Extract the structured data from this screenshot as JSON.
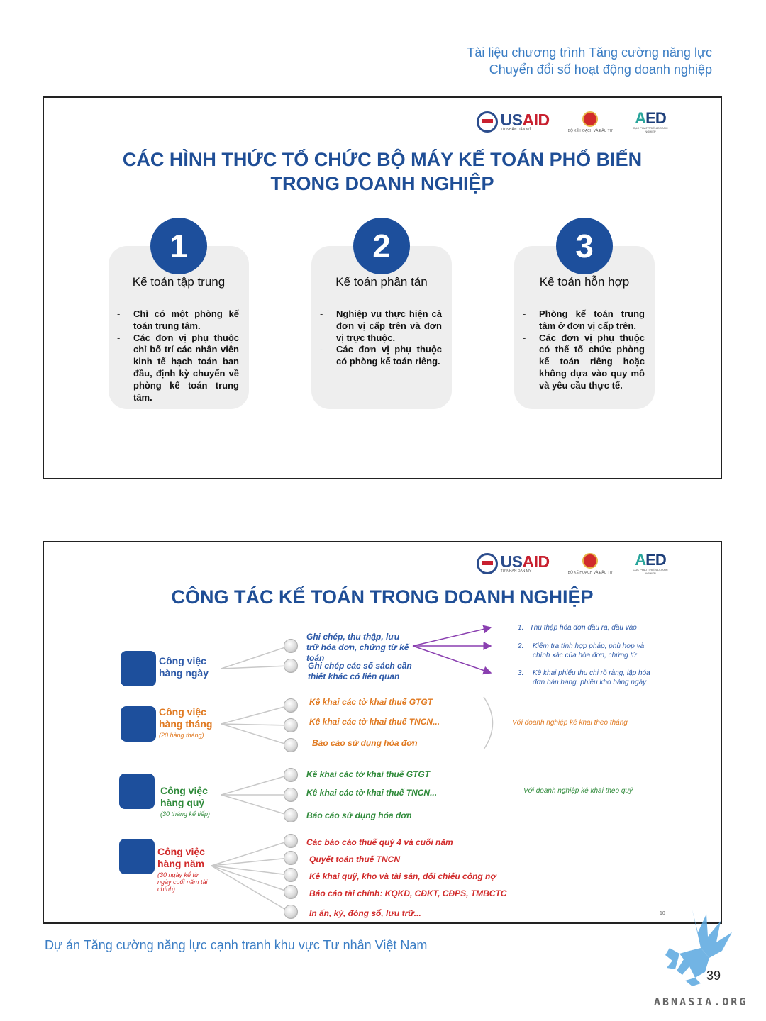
{
  "header": {
    "line1": "Tài liệu chương trình Tăng cường năng lực",
    "line2": "Chuyển đổi số hoạt động doanh nghiệp"
  },
  "logos": {
    "usaid_us": "US",
    "usaid_aid": "AID",
    "usaid_sub": "TỪ NHÂN DÂN MỸ",
    "mpi_sub": "BỘ KẾ HOẠCH VÀ ĐẦU TƯ",
    "aed_a": "A",
    "aed_ed": "ED",
    "aed_sub": "CỤC PHÁT TRIỂN DOANH NGHIỆP"
  },
  "slide1": {
    "title_line1": "CÁC HÌNH THỨC TỔ CHỨC BỘ MÁY KẾ TOÁN PHỔ BIẾN",
    "title_line2": "TRONG DOANH NGHIỆP",
    "cards": [
      {
        "num": "1",
        "title": "Kế toán tập trung",
        "bullets": [
          "Chỉ có một phòng kế toán trung tâm.",
          "Các đơn vị phụ thuộc chỉ bố trí các nhân viên kinh tế hạch toán ban đầu, định kỳ chuyển về phòng kế toán trung tâm."
        ]
      },
      {
        "num": "2",
        "title": "Kế toán phân tán",
        "bullets": [
          "Nghiệp vụ thực hiện cả đơn vị cấp trên và đơn vị trực thuộc.",
          "Các đơn vị phụ thuộc có phòng kế toán riêng."
        ]
      },
      {
        "num": "3",
        "title": "Kế toán hỗn hợp",
        "bullets": [
          "Phòng kế toán trung tâm ở đơn vị cấp trên.",
          "Các đơn vị phụ thuộc có thể tổ chức phòng kế toán riêng hoặc không dựa vào quy mô và yêu cầu thực tế."
        ]
      }
    ]
  },
  "slide2": {
    "title": "CÔNG TÁC KẾ TOÁN TRONG DOANH NGHIỆP",
    "groups": [
      {
        "label": "Công việc hàng ngày",
        "sub": "",
        "tasks": [
          "Ghi chép, thu thập, lưu trữ hóa đơn, chứng từ kế toán",
          "Ghi chép các sổ sách cần thiết khác có liên quan"
        ]
      },
      {
        "label": "Công việc hàng tháng",
        "sub": "(20 hàng tháng)",
        "tasks": [
          "Kê khai các tờ khai thuế GTGT",
          "Kê khai các tờ khai thuế  TNCN...",
          "Báo cáo sử dụng hóa đơn"
        ],
        "note": "Với doanh nghiệp kê khai theo tháng"
      },
      {
        "label": "Công việc hàng quý",
        "sub": "(30 tháng kế tiếp)",
        "tasks": [
          "Kê khai các tờ khai thuế GTGT",
          "Kê khai các tờ khai thuế  TNCN...",
          "Báo cáo sử dụng hóa đơn"
        ],
        "note": "Với doanh nghiệp kê khai theo quý"
      },
      {
        "label": "Công việc hàng năm",
        "sub": "(30 ngày kể từ ngày cuối năm tài chính)",
        "tasks": [
          "Các báo cáo thuế quý 4 và cuối năm",
          "Quyết toán thuế TNCN",
          "Kê khai quỹ, kho và tài sản, đối chiếu công nợ",
          "Báo cáo tài chính: KQKD, CĐKT, CĐPS, TMBCTC",
          "In ấn, ký, đóng sổ, lưu trữ..."
        ]
      }
    ],
    "daily_steps": [
      {
        "n": "1.",
        "text": "Thu thập hóa đơn đầu ra, đầu vào"
      },
      {
        "n": "2.",
        "text": "Kiểm tra tính hợp pháp, phù hợp và chính xác của hóa đơn, chứng từ"
      },
      {
        "n": "3.",
        "text": "Kê khai phiếu thu chi rõ ràng, lập hóa đơn bán hàng, phiếu kho hàng ngày"
      }
    ],
    "slide_no": "10"
  },
  "footer": {
    "text": "Dự án Tăng cường năng lực cạnh tranh khu vực Tư nhân Việt Nam",
    "page": "39"
  },
  "watermark": "ABNASIA.ORG",
  "colors": {
    "navy": "#1d4f9c",
    "title_blue": "#1f4e96",
    "header_blue": "#3a7dc4",
    "orange": "#e07a22",
    "green": "#2f8a3a",
    "red": "#d12b2b",
    "purple": "#8a3fb0"
  }
}
